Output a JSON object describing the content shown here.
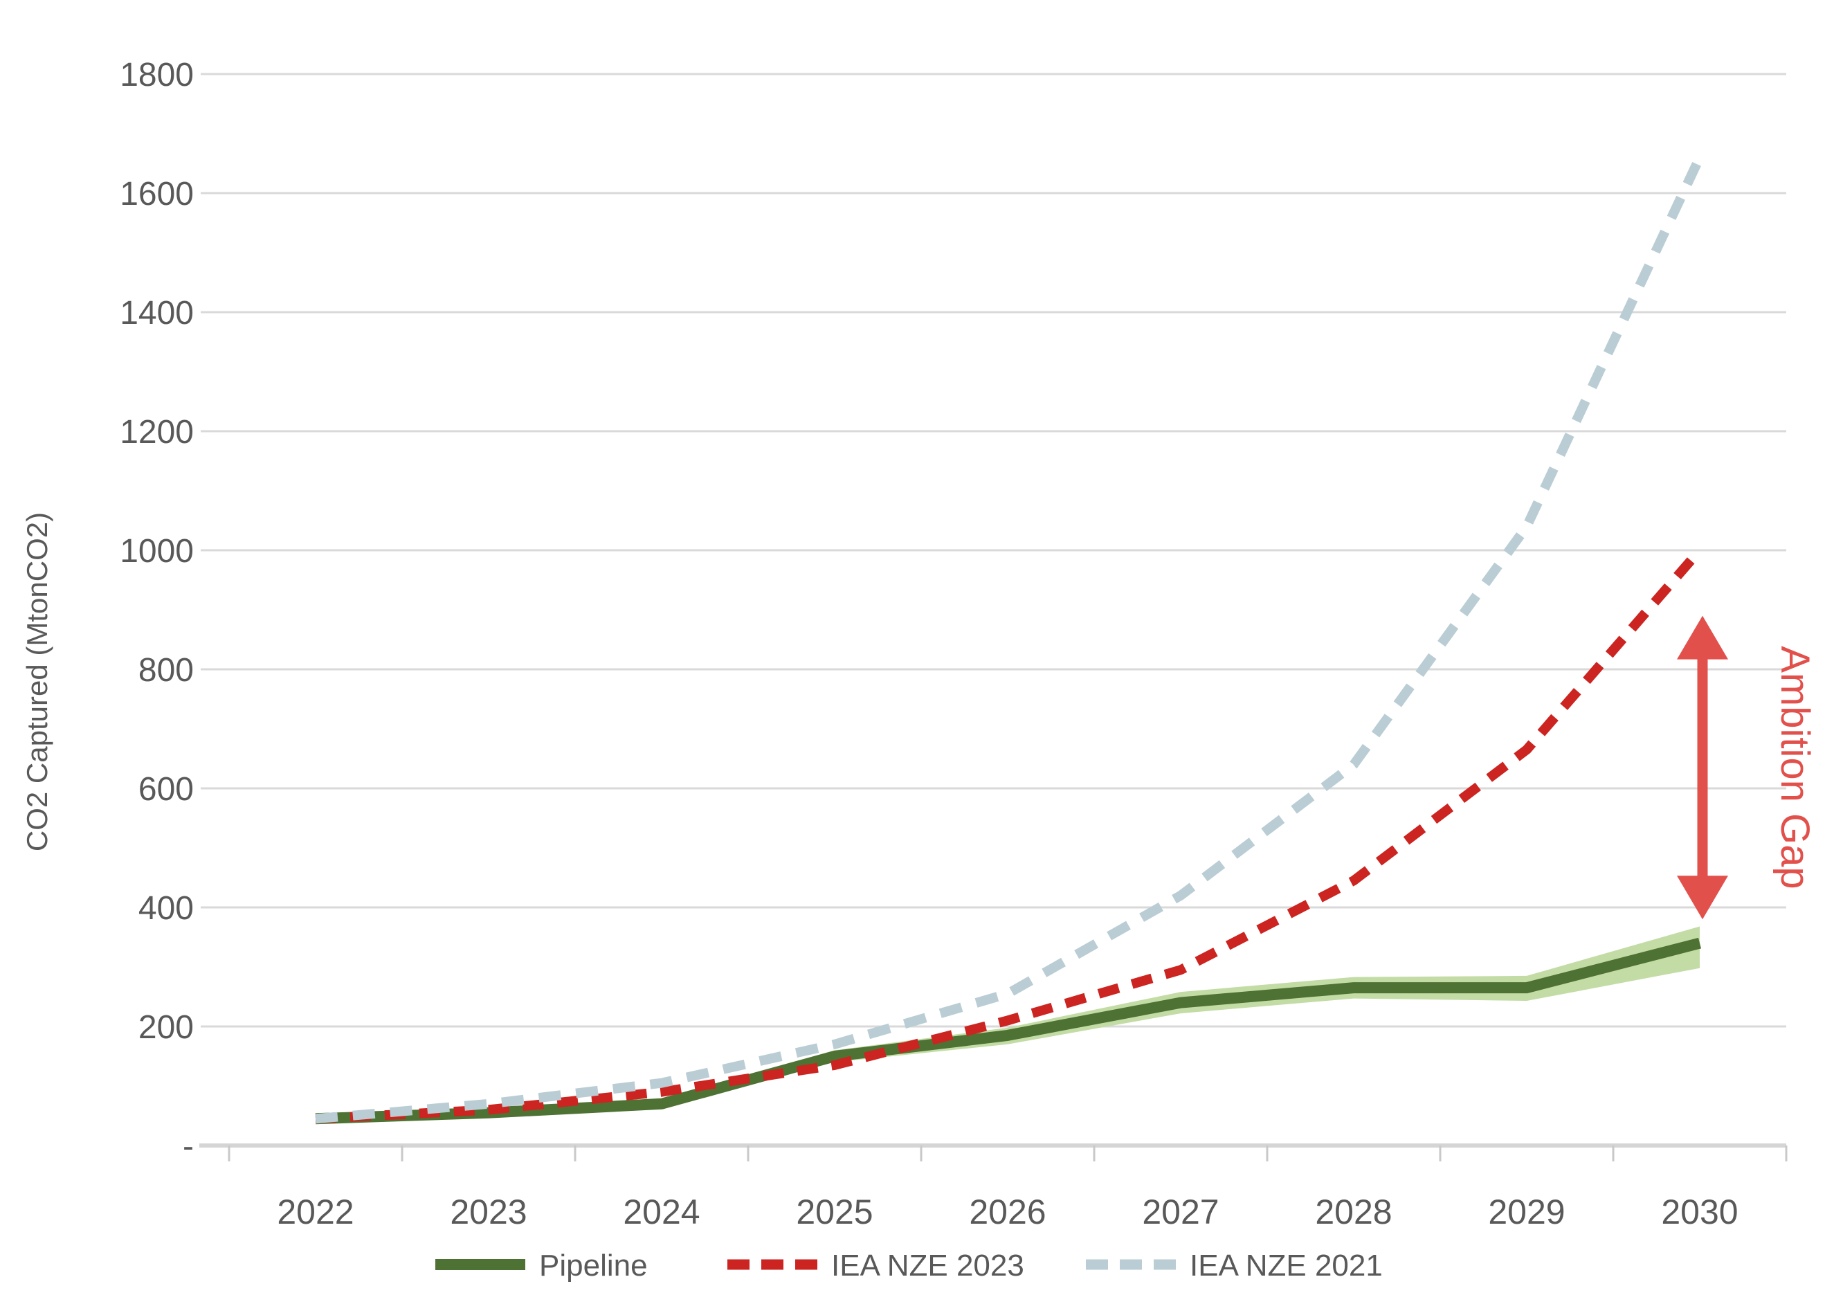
{
  "chart_data": {
    "type": "line",
    "title": "",
    "xlabel": "",
    "ylabel": "CO2 Captured (MtonCO2)",
    "categories": [
      "2022",
      "2023",
      "2024",
      "2025",
      "2026",
      "2027",
      "2028",
      "2029",
      "2030"
    ],
    "ylim": [
      0,
      1800
    ],
    "yticks": [
      0,
      200,
      400,
      600,
      800,
      1000,
      1200,
      1400,
      1600,
      1800
    ],
    "ytick_labels": [
      "-",
      "200",
      "400",
      "600",
      "800",
      "1000",
      "1200",
      "1400",
      "1600",
      "1800"
    ],
    "grid": "horizontal",
    "legend_position": "bottom",
    "series": [
      {
        "name": "Pipeline",
        "type": "line",
        "line_style": "solid",
        "color": "#4E7233",
        "values": [
          45,
          55,
          70,
          150,
          185,
          240,
          265,
          265,
          340
        ],
        "band": {
          "label": "pipeline-uncertainty-band",
          "color": "#C3DCA6",
          "low": [
            41,
            50,
            64,
            140,
            170,
            222,
            247,
            243,
            298
          ],
          "high": [
            49,
            60,
            77,
            160,
            198,
            258,
            283,
            285,
            368
          ]
        }
      },
      {
        "name": "IEA NZE 2023",
        "type": "line",
        "line_style": "dashed",
        "color": "#CC2420",
        "values": [
          45,
          60,
          90,
          135,
          210,
          295,
          445,
          665,
          1000
        ]
      },
      {
        "name": "IEA NZE 2021",
        "type": "line",
        "line_style": "dashed",
        "color": "#BACDD4",
        "values": [
          45,
          70,
          105,
          170,
          255,
          420,
          640,
          1040,
          1660
        ]
      }
    ],
    "annotation": {
      "label": "Ambition Gap",
      "color": "#E2504C",
      "at_category": "2030",
      "arrow_top_value": 890,
      "arrow_bottom_value": 380
    },
    "colors": {
      "axis_text": "#595959",
      "gridline": "#D9D9D9",
      "axis_line": "#D5D5D5",
      "tick_mark": "#C9C9C9"
    }
  }
}
